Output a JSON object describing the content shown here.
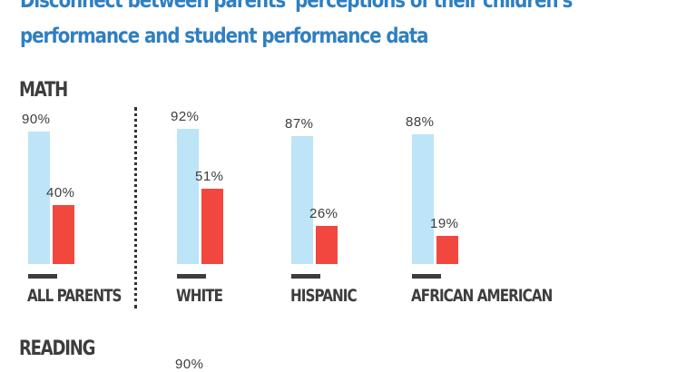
{
  "title_lines": [
    "Disconnect between parents' perceptions of their children's",
    "performance and student performance data"
  ],
  "colors": {
    "perception": "#bde4f7",
    "actual": "#f2473f",
    "title": "#2f7fc1",
    "text": "#3d3d3d"
  },
  "sections": {
    "math": "MATH",
    "reading": "READING"
  },
  "chart_data": {
    "type": "bar",
    "title": "MATH",
    "categories": [
      "ALL PARENTS",
      "WHITE",
      "HISPANIC",
      "AFRICAN AMERICAN"
    ],
    "series": [
      {
        "values": [
          90,
          92,
          87,
          88
        ],
        "color": "#bde4f7"
      },
      {
        "values": [
          40,
          51,
          26,
          19
        ],
        "color": "#f2473f"
      }
    ],
    "value_labels": [
      [
        "90%",
        "40%"
      ],
      [
        "92%",
        "51%"
      ],
      [
        "87%",
        "26%"
      ],
      [
        "88%",
        "19%"
      ]
    ],
    "ylim": [
      0,
      100
    ],
    "grid": false
  },
  "reading_partial_label": "90%"
}
